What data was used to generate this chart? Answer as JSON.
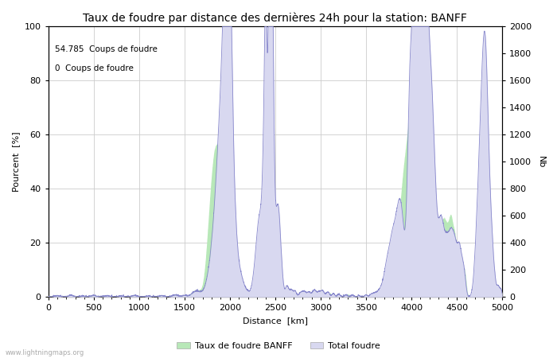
{
  "title": "Taux de foudre par distance des dernières 24h pour la station: BANFF",
  "xlabel": "Distance  [km]",
  "ylabel_left": "Pourcent  [%]",
  "ylabel_right": "Nb",
  "annotation_line1": "54.785  Coups de foudre",
  "annotation_line2": "0  Coups de foudre",
  "xlim": [
    0,
    5000
  ],
  "ylim_left": [
    0,
    100
  ],
  "ylim_right": [
    0,
    2000
  ],
  "xticks": [
    0,
    500,
    1000,
    1500,
    2000,
    2500,
    3000,
    3500,
    4000,
    4500,
    5000
  ],
  "yticks_left": [
    0,
    20,
    40,
    60,
    80,
    100
  ],
  "yticks_right": [
    0,
    200,
    400,
    600,
    800,
    1000,
    1200,
    1400,
    1600,
    1800,
    2000
  ],
  "legend_labels": [
    "Taux de foudre BANFF",
    "Total foudre"
  ],
  "fill_color_rate": "#b8e8b8",
  "fill_color_total": "#d8d8f0",
  "line_color": "#8888cc",
  "watermark": "www.lightningmaps.org",
  "background_color": "#ffffff",
  "grid_color": "#cccccc",
  "title_fontsize": 10,
  "axis_fontsize": 8,
  "tick_fontsize": 8
}
